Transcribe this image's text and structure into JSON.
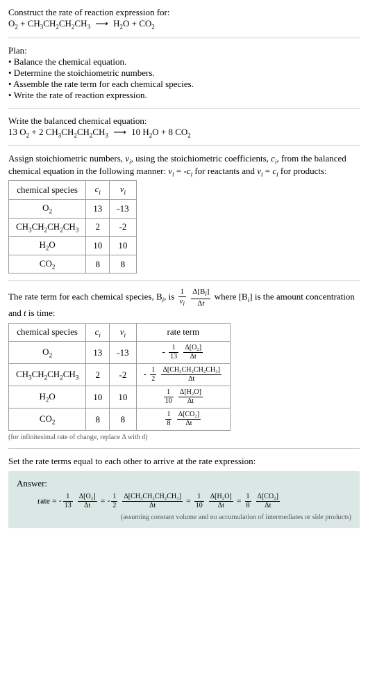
{
  "header": {
    "construct_label": "Construct the rate of reaction expression for:",
    "reaction": "O₂ + CH₃CH₂CH₂CH₃  ⟶  H₂O + CO₂"
  },
  "plan": {
    "title": "Plan:",
    "items": [
      "• Balance the chemical equation.",
      "• Determine the stoichiometric numbers.",
      "• Assemble the rate term for each chemical species.",
      "• Write the rate of reaction expression."
    ]
  },
  "balanced": {
    "title": "Write the balanced chemical equation:",
    "equation": "13 O₂ + 2 CH₃CH₂CH₂CH₃  ⟶  10 H₂O + 8 CO₂"
  },
  "assign": {
    "text": "Assign stoichiometric numbers, νᵢ, using the stoichiometric coefficients, cᵢ, from the balanced chemical equation in the following manner: νᵢ = -cᵢ for reactants and νᵢ = cᵢ for products:"
  },
  "table1": {
    "headers": [
      "chemical species",
      "cᵢ",
      "νᵢ"
    ],
    "rows": [
      [
        "O₂",
        "13",
        "-13"
      ],
      [
        "CH₃CH₂CH₂CH₃",
        "2",
        "-2"
      ],
      [
        "H₂O",
        "10",
        "10"
      ],
      [
        "CO₂",
        "8",
        "8"
      ]
    ]
  },
  "rate_term_intro": {
    "prefix": "The rate term for each chemical species, Bᵢ, is ",
    "suffix": " where [Bᵢ] is the amount concentration and t is time:"
  },
  "table2": {
    "headers": [
      "chemical species",
      "cᵢ",
      "νᵢ",
      "rate term"
    ],
    "rows": [
      {
        "species": "O₂",
        "c": "13",
        "v": "-13",
        "sign": "-",
        "fnum": "1",
        "fden": "13",
        "dnum": "Δ[O₂]",
        "dden": "Δt"
      },
      {
        "species": "CH₃CH₂CH₂CH₃",
        "c": "2",
        "v": "-2",
        "sign": "-",
        "fnum": "1",
        "fden": "2",
        "dnum": "Δ[CH₃CH₂CH₂CH₃]",
        "dden": "Δt"
      },
      {
        "species": "H₂O",
        "c": "10",
        "v": "10",
        "sign": "",
        "fnum": "1",
        "fden": "10",
        "dnum": "Δ[H₂O]",
        "dden": "Δt"
      },
      {
        "species": "CO₂",
        "c": "8",
        "v": "8",
        "sign": "",
        "fnum": "1",
        "fden": "8",
        "dnum": "Δ[CO₂]",
        "dden": "Δt"
      }
    ],
    "footnote": "(for infinitesimal rate of change, replace Δ with d)"
  },
  "set_equal": "Set the rate terms equal to each other to arrive at the rate expression:",
  "answer": {
    "label": "Answer:",
    "formula_parts": {
      "rate": "rate = ",
      "terms": [
        {
          "sign": "-",
          "fnum": "1",
          "fden": "13",
          "dnum": "Δ[O₂]",
          "dden": "Δt"
        },
        {
          "sign": "-",
          "fnum": "1",
          "fden": "2",
          "dnum": "Δ[CH₃CH₂CH₂CH₃]",
          "dden": "Δt"
        },
        {
          "sign": "",
          "fnum": "1",
          "fden": "10",
          "dnum": "Δ[H₂O]",
          "dden": "Δt"
        },
        {
          "sign": "",
          "fnum": "1",
          "fden": "8",
          "dnum": "Δ[CO₂]",
          "dden": "Δt"
        }
      ]
    },
    "note": "(assuming constant volume and no accumulation of intermediates or side products)"
  },
  "colors": {
    "hr": "#cccccc",
    "table_border": "#999999",
    "footnote": "#555555",
    "answer_bg": "#dbe7e4"
  }
}
